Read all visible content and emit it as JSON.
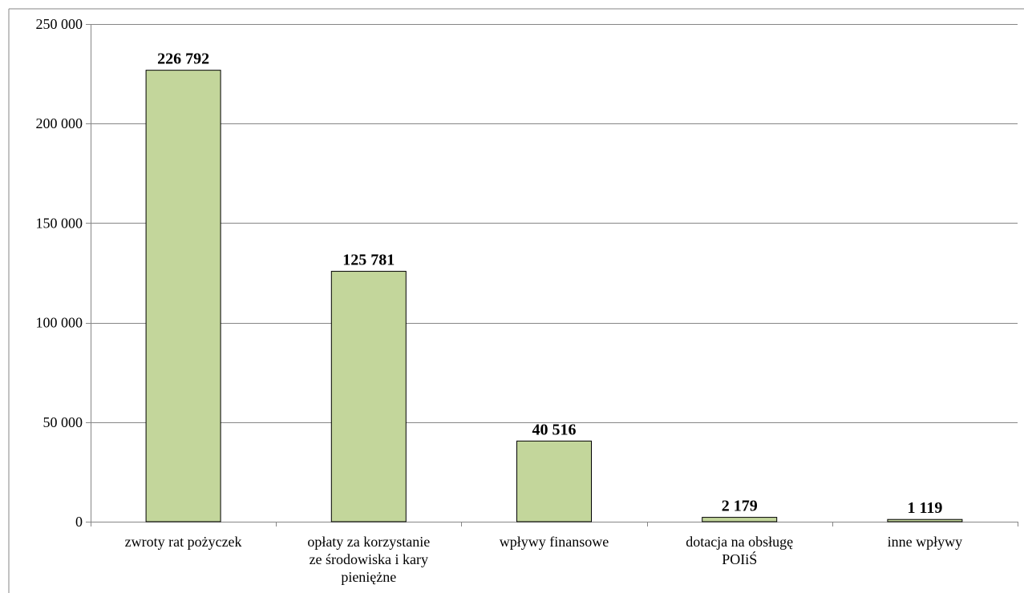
{
  "chart_data": {
    "type": "bar",
    "title": "",
    "xlabel": "",
    "ylabel": "",
    "categories": [
      [
        "zwroty rat pożyczek"
      ],
      [
        "opłaty za korzystanie",
        "ze środowiska i kary",
        "pieniężne"
      ],
      [
        "wpływy finansowe"
      ],
      [
        "dotacja na obsługę",
        "POIiŚ"
      ],
      [
        "inne wpływy"
      ]
    ],
    "values": [
      226792,
      125781,
      40516,
      2179,
      1119
    ],
    "data_labels": [
      "226 792",
      "125 781",
      "40 516",
      "2 179",
      "1 119"
    ],
    "ylim": [
      0,
      250000
    ],
    "y_ticks": [
      0,
      50000,
      100000,
      150000,
      200000,
      250000
    ],
    "y_tick_labels": [
      "0",
      "50 000",
      "100 000",
      "150 000",
      "200 000",
      "250 000"
    ],
    "grid": true,
    "legend": "none",
    "colors": {
      "bar_fill": "#c3d69b",
      "bar_stroke": "#000000",
      "grid": "#868686",
      "axis": "#868686",
      "border": "#868686"
    }
  }
}
